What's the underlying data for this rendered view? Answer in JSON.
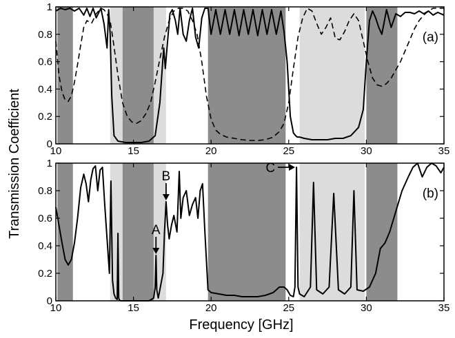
{
  "figure": {
    "ylabel": "Transmission Coefficient",
    "xlabel": "Frequency [GHz]"
  },
  "chart_data": [
    {
      "type": "line",
      "panel_label": "(a)",
      "xlabel": "Frequency [GHz]",
      "ylabel": "Transmission Coefficient",
      "xlim": [
        10,
        35
      ],
      "ylim": [
        0,
        1
      ],
      "x_ticks": [
        10,
        15,
        20,
        25,
        30,
        35
      ],
      "y_ticks": [
        0,
        0.2,
        0.4,
        0.6,
        0.8,
        1
      ],
      "x_tick_labels": [
        "10",
        "15",
        "20",
        "25",
        "30",
        "35"
      ],
      "y_tick_labels": [
        "0",
        "0.2",
        "0.4",
        "0.6",
        "0.8",
        "1"
      ],
      "grid": false,
      "dark_bands": [
        [
          10.1,
          11.1
        ],
        [
          14.3,
          16.3
        ],
        [
          19.8,
          24.8
        ],
        [
          30.0,
          32.0
        ]
      ],
      "light_bands": [
        [
          13.5,
          14.3
        ],
        [
          16.3,
          17.1
        ],
        [
          25.7,
          29.9
        ]
      ],
      "series": [
        {
          "style": "solid",
          "x": [
            10.0,
            10.3,
            10.6,
            10.9,
            11.2,
            11.5,
            11.8,
            12.0,
            12.2,
            12.4,
            12.6,
            12.9,
            13.1,
            13.3,
            13.4,
            13.5,
            13.6,
            13.75,
            14.0,
            14.5,
            15.0,
            15.5,
            16.0,
            16.4,
            16.7,
            16.85,
            16.95,
            17.05,
            17.2,
            17.35,
            17.5,
            17.7,
            17.85,
            18.0,
            18.2,
            18.4,
            18.6,
            18.8,
            19.0,
            19.2,
            19.4,
            19.6,
            19.8,
            20.0,
            20.3,
            20.6,
            20.9,
            21.2,
            21.5,
            21.8,
            22.1,
            22.4,
            22.7,
            23.0,
            23.3,
            23.6,
            23.9,
            24.2,
            24.5,
            24.7,
            24.9,
            25.1,
            25.3,
            25.45,
            25.55,
            25.7,
            26.0,
            26.5,
            27.0,
            27.5,
            28.0,
            28.5,
            29.0,
            29.5,
            29.8,
            30.0,
            30.2,
            30.4,
            30.6,
            30.8,
            31.0,
            31.3,
            31.6,
            31.9,
            32.2,
            32.5,
            32.8,
            33.1,
            33.4,
            33.7,
            34.0,
            34.3,
            34.6,
            35.0
          ],
          "y": [
            0.97,
            0.99,
            0.98,
            0.99,
            0.97,
            0.99,
            0.94,
            0.99,
            0.93,
            0.99,
            0.92,
            0.99,
            0.88,
            0.7,
            0.98,
            0.8,
            0.35,
            0.06,
            0.02,
            0.01,
            0.01,
            0.01,
            0.02,
            0.06,
            0.3,
            0.55,
            0.7,
            0.55,
            0.75,
            0.95,
            0.98,
            0.9,
            0.8,
            0.99,
            0.8,
            0.75,
            0.9,
            0.99,
            0.78,
            0.7,
            0.92,
            0.99,
            0.99,
            0.8,
            0.98,
            0.8,
            0.98,
            0.8,
            0.98,
            0.79,
            0.98,
            0.8,
            0.98,
            0.79,
            0.98,
            0.8,
            0.98,
            0.8,
            0.97,
            0.82,
            0.6,
            0.2,
            0.08,
            0.06,
            0.05,
            0.05,
            0.04,
            0.03,
            0.03,
            0.03,
            0.04,
            0.04,
            0.06,
            0.12,
            0.25,
            0.6,
            0.9,
            0.97,
            0.92,
            0.85,
            0.8,
            0.98,
            0.85,
            0.95,
            0.93,
            0.96,
            0.96,
            0.95,
            0.97,
            0.95,
            0.97,
            0.94,
            0.96,
            0.94
          ]
        },
        {
          "style": "dashed",
          "x": [
            10.0,
            10.2,
            10.4,
            10.6,
            10.8,
            11.0,
            11.2,
            11.4,
            11.6,
            11.8,
            12.0,
            12.3,
            12.6,
            12.9,
            13.1,
            13.3,
            13.5,
            13.7,
            14.0,
            14.3,
            14.6,
            14.9,
            15.2,
            15.5,
            15.8,
            16.1,
            16.4,
            16.7,
            17.0,
            17.3,
            17.6,
            17.9,
            18.2,
            18.5,
            18.8,
            19.1,
            19.4,
            19.7,
            20.0,
            20.3,
            20.6,
            21.0,
            21.5,
            22.0,
            22.5,
            23.0,
            23.5,
            24.0,
            24.4,
            24.7,
            25.0,
            25.3,
            25.6,
            25.9,
            26.2,
            26.5,
            26.8,
            27.1,
            27.4,
            27.7,
            28.0,
            28.3,
            28.6,
            28.9,
            29.2,
            29.5,
            29.8,
            30.1,
            30.4,
            30.7,
            31.0,
            31.3,
            31.6,
            31.9,
            32.2,
            32.5,
            32.8,
            33.1,
            33.4,
            33.7,
            34.0,
            34.3,
            34.6,
            35.0
          ],
          "y": [
            0.75,
            0.5,
            0.38,
            0.32,
            0.31,
            0.35,
            0.45,
            0.58,
            0.72,
            0.85,
            0.9,
            0.88,
            0.95,
            0.99,
            0.98,
            0.95,
            0.9,
            0.75,
            0.5,
            0.3,
            0.2,
            0.16,
            0.15,
            0.17,
            0.22,
            0.3,
            0.45,
            0.62,
            0.78,
            0.9,
            0.97,
            0.99,
            0.99,
            0.97,
            0.9,
            0.8,
            0.6,
            0.35,
            0.18,
            0.1,
            0.07,
            0.05,
            0.04,
            0.03,
            0.025,
            0.025,
            0.03,
            0.05,
            0.09,
            0.15,
            0.3,
            0.55,
            0.78,
            0.92,
            0.99,
            0.97,
            0.88,
            0.8,
            0.85,
            0.92,
            0.77,
            0.76,
            0.82,
            0.9,
            0.95,
            0.9,
            0.75,
            0.6,
            0.48,
            0.43,
            0.42,
            0.44,
            0.48,
            0.54,
            0.6,
            0.68,
            0.76,
            0.84,
            0.9,
            0.94,
            0.97,
            0.99,
            0.99,
            0.99
          ]
        }
      ]
    },
    {
      "type": "line",
      "panel_label": "(b)",
      "xlabel": "Frequency [GHz]",
      "ylabel": "Transmission Coefficient",
      "xlim": [
        10,
        35
      ],
      "ylim": [
        0,
        1
      ],
      "x_ticks": [
        10,
        15,
        20,
        25,
        30,
        35
      ],
      "y_ticks": [
        0,
        0.2,
        0.4,
        0.6,
        0.8,
        1
      ],
      "x_tick_labels": [
        "10",
        "15",
        "20",
        "25",
        "30",
        "35"
      ],
      "y_tick_labels": [
        "0",
        "0.2",
        "0.4",
        "0.6",
        "0.8",
        "1"
      ],
      "grid": false,
      "dark_bands": [
        [
          10.1,
          11.1
        ],
        [
          14.3,
          16.3
        ],
        [
          19.8,
          24.8
        ],
        [
          30.0,
          32.0
        ]
      ],
      "light_bands": [
        [
          13.5,
          14.3
        ],
        [
          16.3,
          17.1
        ],
        [
          25.7,
          29.9
        ]
      ],
      "series": [
        {
          "style": "solid",
          "x": [
            10.0,
            10.2,
            10.4,
            10.6,
            10.8,
            11.0,
            11.2,
            11.4,
            11.6,
            11.8,
            11.95,
            12.1,
            12.25,
            12.4,
            12.55,
            12.7,
            12.85,
            13.0,
            13.15,
            13.3,
            13.45,
            13.55,
            13.65,
            13.75,
            13.85,
            13.95,
            14.0,
            14.05,
            14.1,
            14.2,
            14.4,
            15.0,
            15.5,
            16.0,
            16.3,
            16.4,
            16.45,
            16.5,
            16.6,
            16.9,
            17.0,
            17.1,
            17.2,
            17.3,
            17.45,
            17.6,
            17.8,
            17.95,
            18.05,
            18.2,
            18.4,
            18.6,
            18.8,
            19.0,
            19.15,
            19.3,
            19.45,
            19.6,
            19.8,
            20.0,
            20.5,
            21.0,
            21.5,
            22.0,
            22.5,
            23.0,
            23.5,
            24.0,
            24.4,
            24.7,
            24.9,
            25.1,
            25.3,
            25.4,
            25.5,
            25.6,
            25.7,
            26.0,
            26.4,
            26.6,
            26.8,
            27.2,
            27.6,
            27.9,
            28.2,
            28.6,
            29.0,
            29.2,
            29.4,
            29.8,
            30.2,
            30.6,
            30.9,
            31.2,
            31.5,
            31.9,
            32.3,
            32.7,
            33.0,
            33.3,
            33.6,
            33.9,
            34.2,
            34.5,
            34.8,
            35.0
          ],
          "y": [
            0.68,
            0.55,
            0.42,
            0.3,
            0.26,
            0.3,
            0.42,
            0.6,
            0.82,
            0.92,
            0.85,
            0.72,
            0.88,
            0.96,
            0.98,
            0.8,
            0.95,
            0.97,
            0.7,
            0.45,
            0.2,
            0.87,
            0.15,
            0.05,
            0.02,
            0.01,
            0.49,
            0.02,
            0.005,
            0.0,
            0.0,
            0.0,
            0.0,
            0.0,
            0.02,
            0.1,
            0.33,
            0.08,
            0.02,
            0.2,
            0.5,
            0.72,
            0.55,
            0.45,
            0.55,
            0.62,
            0.5,
            0.94,
            0.6,
            0.75,
            0.8,
            0.62,
            0.7,
            0.75,
            0.6,
            0.8,
            0.85,
            0.5,
            0.08,
            0.06,
            0.05,
            0.04,
            0.04,
            0.03,
            0.03,
            0.03,
            0.04,
            0.06,
            0.1,
            0.1,
            0.08,
            0.04,
            0.03,
            0.1,
            0.97,
            0.1,
            0.05,
            0.03,
            0.1,
            0.86,
            0.08,
            0.05,
            0.1,
            0.78,
            0.08,
            0.05,
            0.1,
            0.8,
            0.08,
            0.07,
            0.1,
            0.2,
            0.38,
            0.42,
            0.5,
            0.65,
            0.8,
            0.9,
            0.97,
            1.0,
            0.9,
            0.97,
            1.0,
            0.98,
            0.93,
            0.97
          ]
        }
      ],
      "annotations": [
        {
          "text": "A",
          "x": 16.45,
          "y": 0.33
        },
        {
          "text": "B",
          "x": 17.1,
          "y": 0.72
        },
        {
          "text": "C",
          "x": 25.5,
          "y": 0.97
        }
      ]
    }
  ]
}
